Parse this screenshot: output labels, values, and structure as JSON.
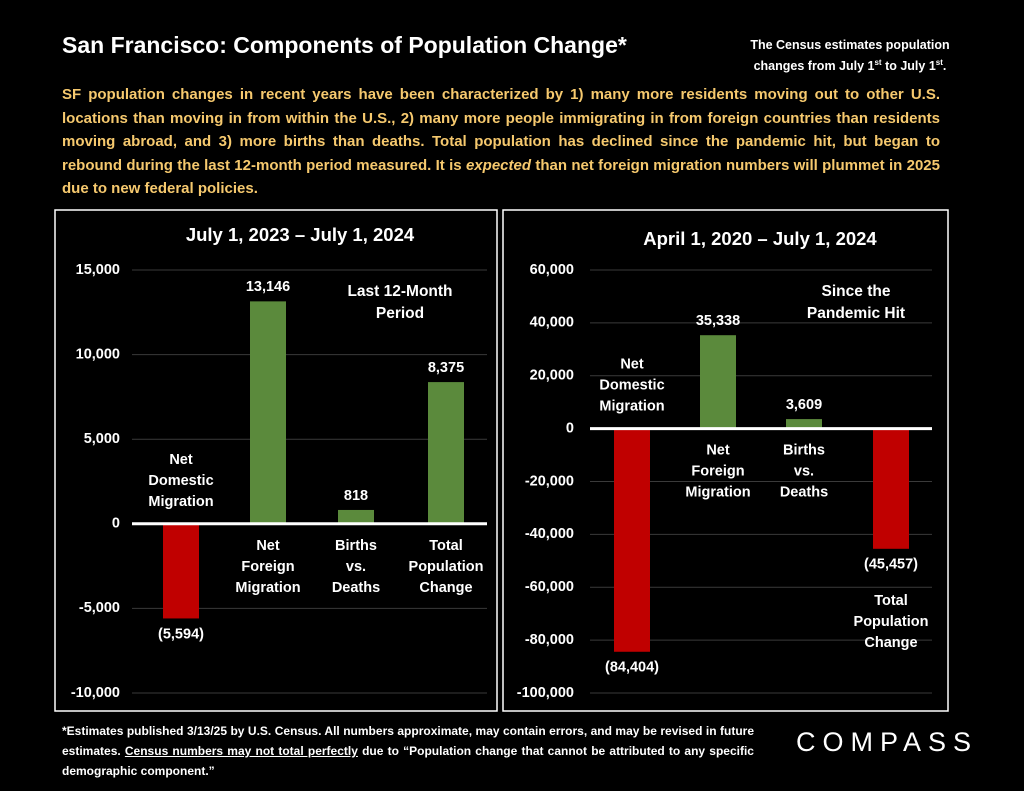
{
  "title": "San Francisco: Components of Population Change*",
  "note": [
    "The Census estimates population changes from July 1",
    "st",
    " to July 1",
    "st",
    "."
  ],
  "description": [
    "SF population changes in recent years have been characterized by 1) many more residents moving out to other U.S. locations than moving in from within the U.S., 2) many more people immigrating in from foreign countries than residents moving abroad, and 3) more births than deaths. Total population has declined since the pandemic hit, but began to rebound during the last 12-month period measured.  It is ",
    "expected",
    " than net foreign migration numbers will plummet in 2025 due to new federal policies."
  ],
  "footnote": [
    "*Estimates published 3/13/25 by U.S. Census. All numbers approximate, may contain errors, and may be revised in future estimates. ",
    "Census numbers may not total perfectly",
    " due to “Population change that cannot be attributed to any specific demographic component.”"
  ],
  "brand": "COMPASS",
  "chart_data": [
    {
      "type": "bar",
      "title": "July 1, 2023 – July 1, 2024",
      "annotation": [
        "Last 12-Month",
        "Period"
      ],
      "categories": [
        "Net Domestic Migration",
        "Net Foreign Migration",
        "Births vs. Deaths",
        "Total Population Change"
      ],
      "values": [
        -5594,
        13146,
        818,
        8375
      ],
      "value_labels": [
        "(5,594)",
        "13,146",
        "818",
        "8,375"
      ],
      "colors": [
        "#c00000",
        "#5b8a3c",
        "#5b8a3c",
        "#5b8a3c"
      ],
      "ylim": [
        -10000,
        15000
      ],
      "yticks": [
        {
          "value": -10000,
          "label": "-10,000"
        },
        {
          "value": -5000,
          "label": "-5,000"
        },
        0,
        {
          "value": 5000,
          "label": "5,000"
        },
        {
          "value": 10000,
          "label": "10,000"
        },
        {
          "value": 15000,
          "label": "15,000"
        }
      ],
      "grid": true
    },
    {
      "type": "bar",
      "title": "April 1, 2020 – July 1, 2024",
      "annotation": [
        "Since the",
        "Pandemic Hit"
      ],
      "categories": [
        "Net Domestic Migration",
        "Net Foreign Migration",
        "Births vs. Deaths",
        "Total Population Change"
      ],
      "values": [
        -84404,
        35338,
        3609,
        -45457
      ],
      "value_labels": [
        "(84,404)",
        "35,338",
        "3,609",
        "(45,457)"
      ],
      "colors": [
        "#c00000",
        "#5b8a3c",
        "#5b8a3c",
        "#c00000"
      ],
      "ylim": [
        -100000,
        60000
      ],
      "yticks": [
        {
          "value": -100000,
          "label": "-100,000"
        },
        {
          "value": -80000,
          "label": "-80,000"
        },
        {
          "value": -60000,
          "label": "-60,000"
        },
        {
          "value": -40000,
          "label": "-40,000"
        },
        {
          "value": -20000,
          "label": "-20,000"
        },
        0,
        {
          "value": 20000,
          "label": "20,000"
        },
        {
          "value": 40000,
          "label": "40,000"
        },
        {
          "value": 60000,
          "label": "60,000"
        }
      ],
      "grid": true
    }
  ]
}
